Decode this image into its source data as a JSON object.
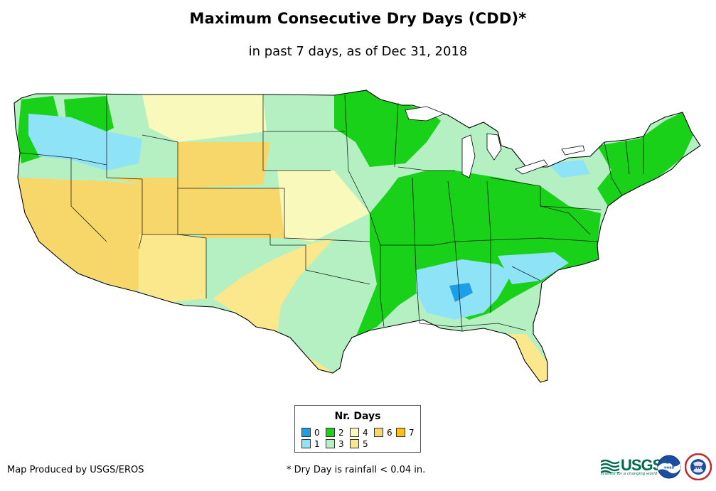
{
  "header": {
    "title": "Maximum Consecutive Dry Days (CDD)*",
    "subtitle": "in past 7 days, as of Dec 31, 2018"
  },
  "legend": {
    "title": "Nr. Days",
    "items": [
      {
        "label": "0",
        "color": "#1f9ee8"
      },
      {
        "label": "1",
        "color": "#8fe3f7"
      },
      {
        "label": "2",
        "color": "#18d118"
      },
      {
        "label": "3",
        "color": "#b5f0c2"
      },
      {
        "label": "4",
        "color": "#f9f9bb"
      },
      {
        "label": "5",
        "color": "#fbe88d"
      },
      {
        "label": "6",
        "color": "#f7d76a"
      },
      {
        "label": "7",
        "color": "#f5c21a"
      }
    ]
  },
  "footer": {
    "credit": "Map Produced by USGS/EROS",
    "note": "* Dry Day is rainfall < 0.04 in."
  },
  "logos": {
    "usgs_text": "USGS",
    "usgs_tagline": "science for a changing world",
    "noaa_text": "noaa",
    "nws_text": "NWS"
  }
}
